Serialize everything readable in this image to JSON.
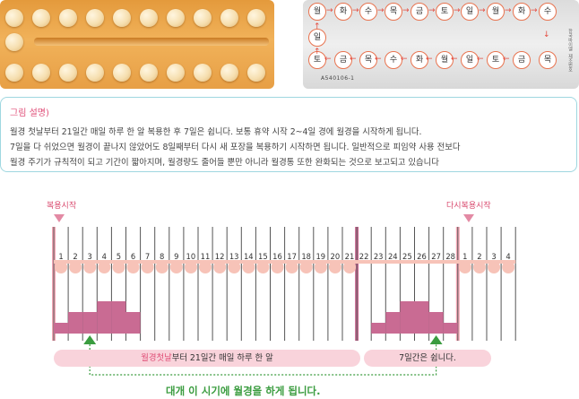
{
  "photo_back": {
    "weekday_labels": [
      "월",
      "화",
      "수",
      "목",
      "금",
      "토",
      "일",
      "월",
      "화",
      "수",
      "목",
      "금",
      "토",
      "일",
      "월",
      "화",
      "수",
      "목",
      "금",
      "토",
      "일"
    ],
    "lot_number": "A540106-1",
    "side_text_right": "한국바이엘",
    "side_text_right_2": "제조번호"
  },
  "caption": {
    "title": "그림 설명)",
    "lines": [
      "월경 첫날부터 21일간 매일 하루 한 알 복용한 후 7일은 쉽니다. 보통 휴약 시작 2~4일 경에 월경을 시작하게 됩니다.",
      "7일을 다 쉬었으면 월경이 끝나지 않았어도 8일째부터 다시 새 포장을 복용하기 시작하면 됩니다. 일반적으로 피임약 사용 전보다",
      "월경 주기가 규칙적이 되고 기간이 짧아지며, 월경량도 줄어들 뿐만 아니라 월경통 또한 완화되는 것으로 보고되고 있습니다"
    ]
  },
  "chart": {
    "start_label": "복용시작",
    "restart_label": "다시복용시작",
    "day_numbers": [
      "1",
      "2",
      "3",
      "4",
      "5",
      "6",
      "7",
      "8",
      "9",
      "10",
      "11",
      "12",
      "13",
      "14",
      "15",
      "16",
      "17",
      "18",
      "19",
      "20",
      "21",
      "22",
      "23",
      "24",
      "25",
      "26",
      "27",
      "28",
      "1",
      "2",
      "3",
      "4"
    ],
    "pill_days_first_cycle": 21,
    "pill_days_new_pack": 4,
    "menstruation_first": [
      1,
      2,
      2,
      3,
      3,
      2
    ],
    "menstruation_break": [
      1,
      2,
      3,
      3,
      2,
      1
    ],
    "bar_take_highlight": "월경첫날",
    "bar_take_rest": "부터 21일간 매일 하루 한 알",
    "bar_rest_label": "7일간은 쉽니다.",
    "bottom_note": "대개 이 시기에 월경을 하게 됩니다."
  },
  "colors": {
    "accent_pink": "#e0507a",
    "period_bar": "#c96b93",
    "pill_dot": "#f7c3b8",
    "green": "#3a9c3f",
    "caption_border": "#9fd7e0"
  }
}
